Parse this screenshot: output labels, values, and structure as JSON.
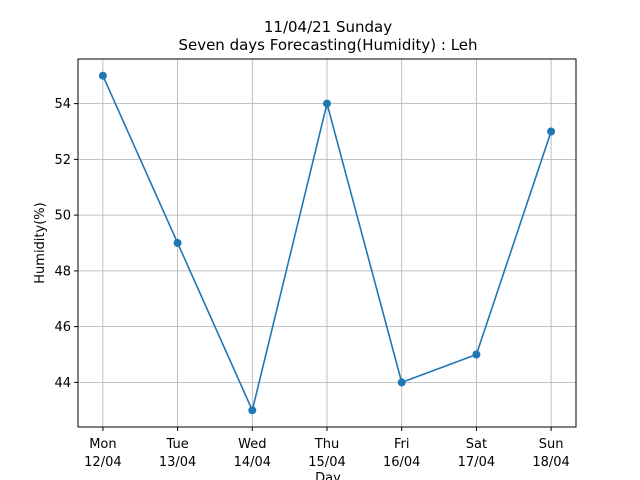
{
  "chart_data": {
    "type": "line",
    "title": [
      "11/04/21 Sunday",
      "Seven days Forecasting(Humidity) : Leh"
    ],
    "xlabel": "Day",
    "ylabel": "Humidity(%)",
    "categories": [
      [
        "Mon",
        "12/04"
      ],
      [
        "Tue",
        "13/04"
      ],
      [
        "Wed",
        "14/04"
      ],
      [
        "Thu",
        "15/04"
      ],
      [
        "Fri",
        "16/04"
      ],
      [
        "Sat",
        "17/04"
      ],
      [
        "Sun",
        "18/04"
      ]
    ],
    "values": [
      55,
      49,
      43,
      54,
      44,
      45,
      53
    ],
    "color": "#1f77b4",
    "ylim": [
      42.4,
      55.6
    ],
    "yticks": [
      44,
      46,
      48,
      50,
      52,
      54
    ],
    "grid": true
  }
}
